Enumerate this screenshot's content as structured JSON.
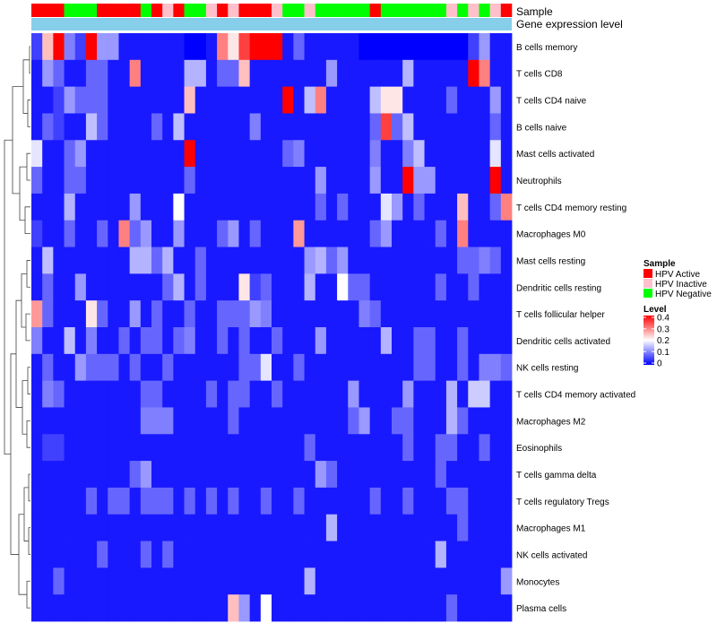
{
  "chart_data": {
    "type": "heatmap",
    "annotation_labels": [
      "Sample",
      "Gene expression level"
    ],
    "rows": [
      "B cells memory",
      "T cells CD8",
      "T cells CD4 naive",
      "B cells naive",
      "Mast cells activated",
      "Neutrophils",
      "T cells CD4 memory resting",
      "Macrophages M0",
      "Mast cells resting",
      "Dendritic cells resting",
      "T cells follicular helper",
      "Dendritic cells activated",
      "NK cells resting",
      "T cells CD4 memory activated",
      "Macrophages M2",
      "Eosinophils",
      "T cells gamma delta",
      "T cells regulatory  Tregs",
      "Macrophages M1",
      "NK cells activated",
      "Monocytes",
      "Plasma cells"
    ],
    "sample_groups": [
      "HPV Active",
      "HPV Active",
      "HPV Active",
      "HPV Negative",
      "HPV Negative",
      "HPV Negative",
      "HPV Active",
      "HPV Active",
      "HPV Active",
      "HPV Active",
      "HPV Negative",
      "HPV Active",
      "HPV Inactive",
      "HPV Active",
      "HPV Negative",
      "HPV Negative",
      "HPV Inactive",
      "HPV Active",
      "HPV Inactive",
      "HPV Active",
      "HPV Active",
      "HPV Active",
      "HPV Inactive",
      "HPV Negative",
      "HPV Negative",
      "HPV Inactive",
      "HPV Negative",
      "HPV Negative",
      "HPV Negative",
      "HPV Negative",
      "HPV Negative",
      "HPV Active",
      "HPV Negative",
      "HPV Negative",
      "HPV Negative",
      "HPV Negative",
      "HPV Negative",
      "HPV Negative",
      "HPV Inactive",
      "HPV Negative",
      "HPV Inactive",
      "HPV Negative",
      "HPV Inactive",
      "HPV Active"
    ],
    "matrix": [
      [
        0.05,
        0.25,
        0.4,
        0.1,
        0.05,
        0.4,
        0.12,
        0.12,
        0.02,
        0.02,
        0.02,
        0.02,
        0.02,
        0.02,
        0.0,
        0.0,
        0.02,
        0.3,
        0.22,
        0.35,
        0.4,
        0.4,
        0.4,
        0.02,
        0.08,
        0.02,
        0.02,
        0.02,
        0.02,
        0.02,
        0.0,
        0.0,
        0.0,
        0.0,
        0.0,
        0.0,
        0.0,
        0.0,
        0.0,
        0.0,
        0.05,
        0.12,
        0.02,
        0.02
      ],
      [
        0.02,
        0.12,
        0.08,
        0.02,
        0.02,
        0.08,
        0.08,
        0.02,
        0.02,
        0.3,
        0.02,
        0.02,
        0.02,
        0.02,
        0.14,
        0.14,
        0.02,
        0.08,
        0.08,
        0.25,
        0.02,
        0.02,
        0.02,
        0.02,
        0.02,
        0.02,
        0.02,
        0.12,
        0.02,
        0.02,
        0.02,
        0.02,
        0.02,
        0.02,
        0.14,
        0.02,
        0.02,
        0.02,
        0.02,
        0.02,
        0.4,
        0.3,
        0.02,
        0.02
      ],
      [
        0.02,
        0.02,
        0.05,
        0.12,
        0.08,
        0.08,
        0.08,
        0.02,
        0.02,
        0.02,
        0.02,
        0.02,
        0.02,
        0.02,
        0.25,
        0.02,
        0.02,
        0.02,
        0.02,
        0.02,
        0.02,
        0.02,
        0.02,
        0.4,
        0.02,
        0.15,
        0.3,
        0.02,
        0.02,
        0.02,
        0.02,
        0.15,
        0.22,
        0.22,
        0.02,
        0.02,
        0.02,
        0.02,
        0.08,
        0.02,
        0.02,
        0.02,
        0.12,
        0.02
      ],
      [
        0.02,
        0.08,
        0.05,
        0.02,
        0.02,
        0.15,
        0.08,
        0.02,
        0.02,
        0.02,
        0.02,
        0.08,
        0.02,
        0.15,
        0.02,
        0.02,
        0.02,
        0.02,
        0.02,
        0.02,
        0.1,
        0.02,
        0.02,
        0.02,
        0.02,
        0.02,
        0.02,
        0.02,
        0.02,
        0.02,
        0.02,
        0.08,
        0.35,
        0.08,
        0.15,
        0.02,
        0.02,
        0.02,
        0.02,
        0.02,
        0.02,
        0.02,
        0.08,
        0.02
      ],
      [
        0.18,
        0.02,
        0.02,
        0.08,
        0.12,
        0.02,
        0.02,
        0.02,
        0.02,
        0.02,
        0.02,
        0.02,
        0.02,
        0.02,
        0.4,
        0.02,
        0.02,
        0.02,
        0.02,
        0.02,
        0.02,
        0.02,
        0.02,
        0.08,
        0.1,
        0.02,
        0.02,
        0.02,
        0.02,
        0.02,
        0.02,
        0.1,
        0.02,
        0.02,
        0.1,
        0.15,
        0.02,
        0.02,
        0.02,
        0.02,
        0.02,
        0.02,
        0.18,
        0.02
      ],
      [
        0.08,
        0.02,
        0.02,
        0.08,
        0.08,
        0.02,
        0.02,
        0.02,
        0.02,
        0.02,
        0.02,
        0.02,
        0.02,
        0.02,
        0.08,
        0.02,
        0.02,
        0.02,
        0.02,
        0.02,
        0.02,
        0.02,
        0.02,
        0.02,
        0.02,
        0.02,
        0.12,
        0.02,
        0.02,
        0.02,
        0.02,
        0.12,
        0.02,
        0.02,
        0.4,
        0.12,
        0.12,
        0.02,
        0.02,
        0.02,
        0.02,
        0.02,
        0.4,
        0.02
      ],
      [
        0.02,
        0.02,
        0.02,
        0.14,
        0.02,
        0.02,
        0.02,
        0.02,
        0.02,
        0.12,
        0.02,
        0.02,
        0.02,
        0.2,
        0.02,
        0.02,
        0.02,
        0.02,
        0.02,
        0.02,
        0.02,
        0.02,
        0.02,
        0.02,
        0.02,
        0.02,
        0.08,
        0.02,
        0.08,
        0.02,
        0.02,
        0.02,
        0.18,
        0.12,
        0.02,
        0.08,
        0.02,
        0.02,
        0.02,
        0.25,
        0.02,
        0.02,
        0.08,
        0.3
      ],
      [
        0.05,
        0.02,
        0.02,
        0.08,
        0.02,
        0.02,
        0.08,
        0.02,
        0.3,
        0.08,
        0.12,
        0.02,
        0.02,
        0.12,
        0.02,
        0.02,
        0.02,
        0.08,
        0.12,
        0.02,
        0.08,
        0.02,
        0.02,
        0.02,
        0.28,
        0.02,
        0.02,
        0.02,
        0.02,
        0.02,
        0.02,
        0.08,
        0.12,
        0.02,
        0.02,
        0.02,
        0.02,
        0.08,
        0.02,
        0.3,
        0.02,
        0.02,
        0.02,
        0.02
      ],
      [
        0.02,
        0.15,
        0.02,
        0.02,
        0.02,
        0.02,
        0.02,
        0.02,
        0.02,
        0.14,
        0.14,
        0.08,
        0.14,
        0.02,
        0.02,
        0.08,
        0.02,
        0.02,
        0.02,
        0.02,
        0.02,
        0.02,
        0.02,
        0.02,
        0.02,
        0.12,
        0.14,
        0.08,
        0.12,
        0.02,
        0.02,
        0.02,
        0.02,
        0.02,
        0.02,
        0.02,
        0.02,
        0.02,
        0.02,
        0.08,
        0.08,
        0.1,
        0.08,
        0.02
      ],
      [
        0.02,
        0.08,
        0.02,
        0.02,
        0.12,
        0.02,
        0.02,
        0.02,
        0.02,
        0.02,
        0.02,
        0.02,
        0.08,
        0.14,
        0.02,
        0.08,
        0.02,
        0.02,
        0.02,
        0.22,
        0.05,
        0.08,
        0.02,
        0.02,
        0.02,
        0.14,
        0.02,
        0.02,
        0.2,
        0.08,
        0.08,
        0.02,
        0.02,
        0.02,
        0.02,
        0.02,
        0.02,
        0.08,
        0.02,
        0.02,
        0.08,
        0.02,
        0.02,
        0.02
      ],
      [
        0.28,
        0.08,
        0.02,
        0.02,
        0.02,
        0.22,
        0.08,
        0.02,
        0.02,
        0.12,
        0.02,
        0.08,
        0.02,
        0.02,
        0.08,
        0.02,
        0.02,
        0.08,
        0.08,
        0.08,
        0.12,
        0.1,
        0.02,
        0.02,
        0.02,
        0.02,
        0.02,
        0.02,
        0.02,
        0.02,
        0.1,
        0.08,
        0.02,
        0.02,
        0.02,
        0.02,
        0.02,
        0.02,
        0.02,
        0.02,
        0.02,
        0.02,
        0.02,
        0.02
      ],
      [
        0.1,
        0.02,
        0.02,
        0.15,
        0.02,
        0.1,
        0.02,
        0.02,
        0.08,
        0.02,
        0.08,
        0.08,
        0.02,
        0.08,
        0.1,
        0.02,
        0.02,
        0.08,
        0.02,
        0.08,
        0.02,
        0.02,
        0.08,
        0.02,
        0.02,
        0.02,
        0.12,
        0.02,
        0.02,
        0.02,
        0.02,
        0.02,
        0.14,
        0.02,
        0.02,
        0.08,
        0.08,
        0.02,
        0.02,
        0.08,
        0.02,
        0.02,
        0.02,
        0.02
      ],
      [
        0.02,
        0.08,
        0.02,
        0.02,
        0.12,
        0.08,
        0.08,
        0.08,
        0.02,
        0.08,
        0.02,
        0.02,
        0.08,
        0.02,
        0.02,
        0.02,
        0.02,
        0.02,
        0.02,
        0.08,
        0.08,
        0.18,
        0.02,
        0.02,
        0.08,
        0.02,
        0.02,
        0.02,
        0.02,
        0.02,
        0.02,
        0.02,
        0.02,
        0.02,
        0.02,
        0.08,
        0.08,
        0.02,
        0.02,
        0.08,
        0.02,
        0.1,
        0.1,
        0.08
      ],
      [
        0.02,
        0.1,
        0.08,
        0.02,
        0.02,
        0.02,
        0.02,
        0.02,
        0.02,
        0.02,
        0.08,
        0.08,
        0.02,
        0.02,
        0.02,
        0.02,
        0.08,
        0.02,
        0.08,
        0.08,
        0.02,
        0.02,
        0.08,
        0.02,
        0.02,
        0.02,
        0.02,
        0.02,
        0.02,
        0.12,
        0.02,
        0.02,
        0.02,
        0.02,
        0.12,
        0.02,
        0.02,
        0.02,
        0.14,
        0.02,
        0.16,
        0.16,
        0.02,
        0.02
      ],
      [
        0.02,
        0.02,
        0.02,
        0.02,
        0.02,
        0.02,
        0.02,
        0.02,
        0.02,
        0.02,
        0.1,
        0.1,
        0.1,
        0.02,
        0.02,
        0.02,
        0.02,
        0.02,
        0.08,
        0.02,
        0.02,
        0.02,
        0.02,
        0.02,
        0.02,
        0.02,
        0.02,
        0.02,
        0.02,
        0.08,
        0.12,
        0.02,
        0.02,
        0.08,
        0.08,
        0.02,
        0.02,
        0.02,
        0.14,
        0.08,
        0.02,
        0.02,
        0.02,
        0.02
      ],
      [
        0.02,
        0.05,
        0.05,
        0.02,
        0.02,
        0.02,
        0.02,
        0.02,
        0.02,
        0.02,
        0.02,
        0.02,
        0.02,
        0.02,
        0.02,
        0.02,
        0.02,
        0.02,
        0.02,
        0.02,
        0.02,
        0.02,
        0.02,
        0.02,
        0.02,
        0.08,
        0.02,
        0.02,
        0.02,
        0.02,
        0.02,
        0.02,
        0.02,
        0.02,
        0.08,
        0.02,
        0.02,
        0.08,
        0.08,
        0.02,
        0.02,
        0.08,
        0.02,
        0.02
      ],
      [
        0.02,
        0.02,
        0.02,
        0.02,
        0.02,
        0.02,
        0.02,
        0.02,
        0.02,
        0.08,
        0.12,
        0.02,
        0.02,
        0.02,
        0.02,
        0.02,
        0.02,
        0.02,
        0.02,
        0.02,
        0.02,
        0.02,
        0.02,
        0.02,
        0.02,
        0.02,
        0.12,
        0.08,
        0.02,
        0.02,
        0.02,
        0.02,
        0.02,
        0.02,
        0.02,
        0.02,
        0.02,
        0.08,
        0.02,
        0.02,
        0.02,
        0.02,
        0.02,
        0.02
      ],
      [
        0.02,
        0.02,
        0.02,
        0.02,
        0.02,
        0.08,
        0.02,
        0.08,
        0.08,
        0.02,
        0.08,
        0.08,
        0.08,
        0.02,
        0.08,
        0.02,
        0.08,
        0.02,
        0.08,
        0.02,
        0.02,
        0.08,
        0.02,
        0.02,
        0.08,
        0.02,
        0.02,
        0.02,
        0.02,
        0.02,
        0.02,
        0.08,
        0.02,
        0.02,
        0.08,
        0.02,
        0.02,
        0.02,
        0.08,
        0.08,
        0.02,
        0.02,
        0.02,
        0.02
      ],
      [
        0.02,
        0.02,
        0.02,
        0.02,
        0.02,
        0.02,
        0.02,
        0.02,
        0.02,
        0.02,
        0.02,
        0.02,
        0.02,
        0.02,
        0.02,
        0.02,
        0.02,
        0.02,
        0.02,
        0.02,
        0.02,
        0.02,
        0.02,
        0.02,
        0.02,
        0.02,
        0.02,
        0.14,
        0.02,
        0.02,
        0.02,
        0.02,
        0.02,
        0.02,
        0.02,
        0.02,
        0.02,
        0.02,
        0.02,
        0.08,
        0.02,
        0.02,
        0.02,
        0.02
      ],
      [
        0.02,
        0.02,
        0.02,
        0.02,
        0.02,
        0.02,
        0.08,
        0.02,
        0.02,
        0.02,
        0.08,
        0.02,
        0.08,
        0.02,
        0.02,
        0.02,
        0.02,
        0.02,
        0.02,
        0.02,
        0.02,
        0.02,
        0.02,
        0.02,
        0.02,
        0.02,
        0.02,
        0.02,
        0.02,
        0.02,
        0.02,
        0.02,
        0.02,
        0.02,
        0.02,
        0.02,
        0.02,
        0.14,
        0.02,
        0.02,
        0.02,
        0.02,
        0.02,
        0.02
      ],
      [
        0.02,
        0.02,
        0.08,
        0.02,
        0.02,
        0.02,
        0.02,
        0.02,
        0.02,
        0.02,
        0.02,
        0.02,
        0.02,
        0.02,
        0.02,
        0.02,
        0.02,
        0.02,
        0.02,
        0.02,
        0.02,
        0.02,
        0.02,
        0.02,
        0.02,
        0.14,
        0.02,
        0.02,
        0.02,
        0.02,
        0.02,
        0.02,
        0.02,
        0.02,
        0.02,
        0.02,
        0.02,
        0.02,
        0.02,
        0.02,
        0.02,
        0.02,
        0.02,
        0.12
      ],
      [
        0.02,
        0.02,
        0.02,
        0.02,
        0.02,
        0.02,
        0.02,
        0.02,
        0.02,
        0.02,
        0.02,
        0.02,
        0.02,
        0.02,
        0.02,
        0.02,
        0.02,
        0.02,
        0.25,
        0.12,
        0.02,
        0.2,
        0.02,
        0.02,
        0.02,
        0.02,
        0.02,
        0.02,
        0.02,
        0.02,
        0.02,
        0.02,
        0.02,
        0.02,
        0.02,
        0.02,
        0.02,
        0.02,
        0.08,
        0.02,
        0.02,
        0.02,
        0.02,
        0.02
      ]
    ],
    "value_range": [
      0,
      0.4
    ],
    "legend": {
      "sample_title": "Sample",
      "sample_items": [
        {
          "label": "HPV Active",
          "color": "#ff0000"
        },
        {
          "label": "HPV Inactive",
          "color": "#ffc0cb"
        },
        {
          "label": "HPV Negative",
          "color": "#00ff00"
        }
      ],
      "level_title": "Level",
      "level_ticks": [
        "0.4",
        "0.3",
        "0.2",
        "0.1",
        "0"
      ],
      "placement": "right"
    },
    "colors": {
      "low": "#0000ff",
      "mid": "#ffffff",
      "high": "#ff0000",
      "expression_bar": "#87ceeb"
    }
  }
}
